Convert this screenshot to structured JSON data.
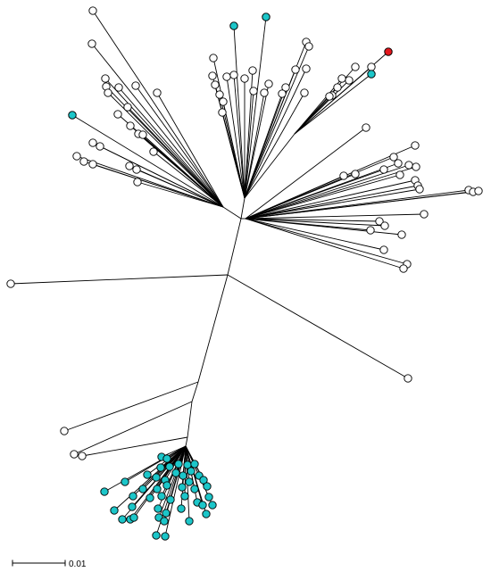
{
  "tree": {
    "type": "unrooted-phylogenetic-tree",
    "tip_colors": {
      "white": "#ffffff",
      "cyan": "#1cc6c9",
      "red": "#e4161c"
    },
    "scale_bar": {
      "label": "0.01",
      "value": 0.01
    }
  }
}
